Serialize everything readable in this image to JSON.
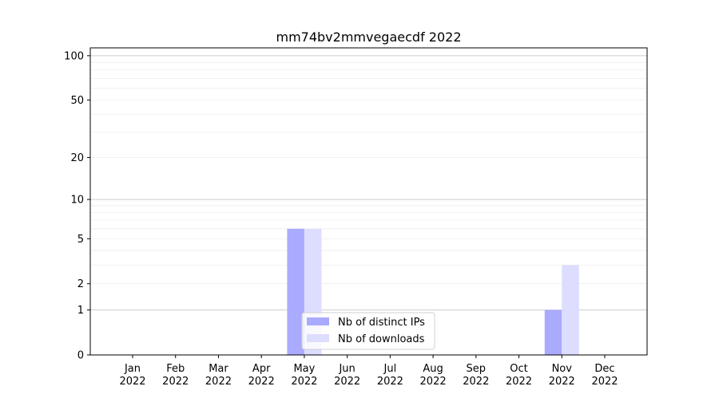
{
  "chart_data": {
    "type": "bar",
    "title": "mm74bv2mmvegaecdf 2022",
    "xlabel": "",
    "ylabel": "",
    "yscale": "log(1+y)",
    "ylim": [
      0,
      113
    ],
    "grid": true,
    "legend_placement": "bottom-center",
    "categories": [
      "Jan\n2022",
      "Feb\n2022",
      "Mar\n2022",
      "Apr\n2022",
      "May\n2022",
      "Jun\n2022",
      "Jul\n2022",
      "Aug\n2022",
      "Sep\n2022",
      "Oct\n2022",
      "Nov\n2022",
      "Dec\n2022"
    ],
    "yticks": [
      0,
      1,
      2,
      5,
      10,
      20,
      50,
      100
    ],
    "series": [
      {
        "name": "Nb of distinct IPs",
        "color": "#aaaaff",
        "values": [
          0,
          0,
          0,
          0,
          6,
          0,
          0,
          0,
          0,
          0,
          1,
          0
        ]
      },
      {
        "name": "Nb of downloads",
        "color": "#ddddff",
        "values": [
          0,
          0,
          0,
          0,
          6,
          0,
          0,
          0,
          0,
          0,
          3,
          0
        ]
      }
    ]
  }
}
